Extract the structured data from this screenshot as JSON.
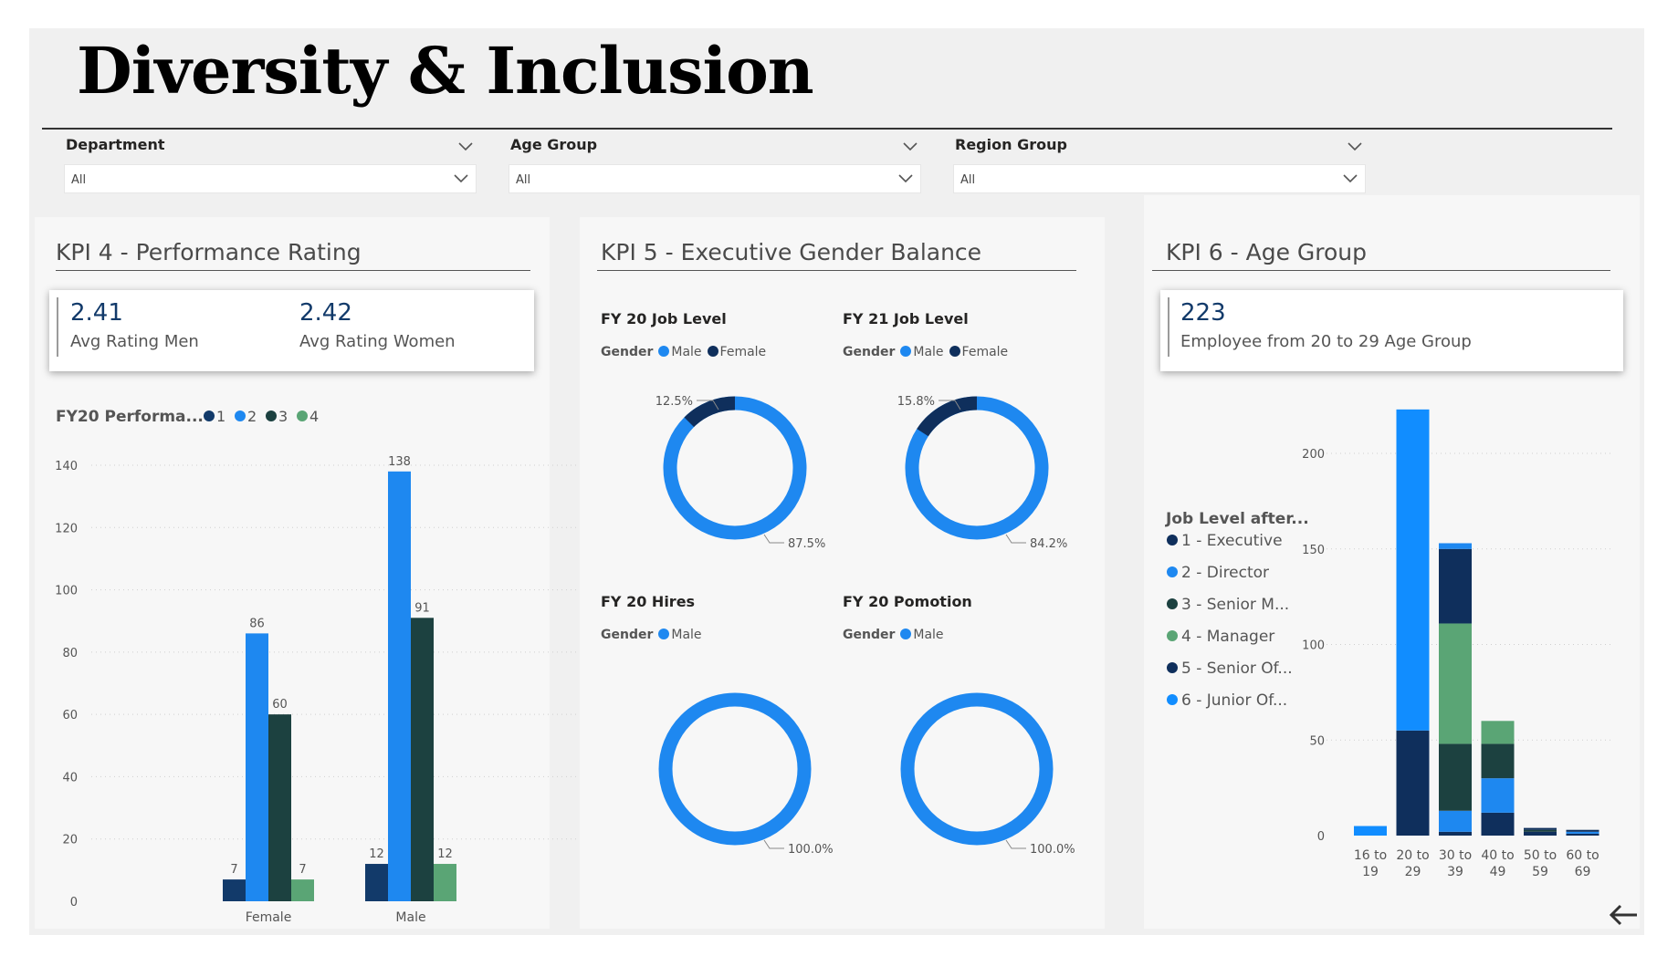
{
  "header": {
    "title": "Diversity & Inclusion"
  },
  "slicers": [
    {
      "label": "Department",
      "value": "All"
    },
    {
      "label": "Age Group",
      "value": "All"
    },
    {
      "label": "Region Group",
      "value": "All"
    }
  ],
  "colors": {
    "dark_blue": "#123a6a",
    "blue": "#1e88f0",
    "dark_green": "#1c4140",
    "green": "#5aa575",
    "navy": "#0f2f5c",
    "light_blue": "#118dff"
  },
  "kpi4": {
    "title": "KPI 4 - Performance Rating",
    "card": {
      "men_value": "2.41",
      "men_label": "Avg Rating Men",
      "women_value": "2.42",
      "women_label": "Avg Rating Women"
    },
    "legend_title": "FY20 Performa...",
    "legend": [
      "1",
      "2",
      "3",
      "4"
    ]
  },
  "kpi5": {
    "title": "KPI 5 - Executive Gender Balance",
    "gender_label": "Gender",
    "male_label": "Male",
    "female_label": "Female",
    "donuts": [
      {
        "title": "FY 20 Job Level",
        "male": "87.5%",
        "female": "12.5%",
        "show_female": true
      },
      {
        "title": "FY 21 Job Level",
        "male": "84.2%",
        "female": "15.8%",
        "show_female": true
      },
      {
        "title": "FY 20 Hires",
        "male": "100.0%",
        "show_female": false
      },
      {
        "title": "FY 20 Pomotion",
        "male": "100.0%",
        "show_female": false
      }
    ]
  },
  "kpi6": {
    "title": "KPI 6 - Age Group",
    "card": {
      "value": "223",
      "label": "Employee from 20 to 29 Age Group"
    },
    "legend_title": "Job Level after...",
    "legend": [
      "1 - Executive",
      "2 - Director",
      "3 - Senior M...",
      "4 - Manager",
      "5 - Senior Of...",
      "6 - Junior Of..."
    ]
  },
  "chart_data": [
    {
      "type": "bar",
      "title": "FY20 Performa...",
      "categories": [
        "Female",
        "Male"
      ],
      "series": [
        {
          "name": "1",
          "values": [
            7,
            12
          ]
        },
        {
          "name": "2",
          "values": [
            86,
            138
          ]
        },
        {
          "name": "3",
          "values": [
            60,
            91
          ]
        },
        {
          "name": "4",
          "values": [
            7,
            12
          ]
        }
      ],
      "y_ticks": [
        "0",
        "20",
        "40",
        "60",
        "80",
        "100",
        "120",
        "140"
      ],
      "ylim": [
        0,
        140
      ],
      "grid": true,
      "legend": "top-left"
    },
    {
      "type": "bar",
      "stacked": true,
      "categories": [
        "16 to 19",
        "20 to 29",
        "30 to 39",
        "40 to 49",
        "50 to 59",
        "60 to 69"
      ],
      "series": [
        {
          "name": "1 - Executive",
          "values": [
            0,
            0,
            0,
            0,
            0,
            0
          ]
        },
        {
          "name": "2 - Director",
          "values": [
            0,
            0,
            0,
            0,
            0,
            0
          ]
        },
        {
          "name": "3 - Senior M...",
          "values": [
            0,
            0,
            0,
            0,
            0,
            0
          ]
        },
        {
          "name": "4 - Manager",
          "values": [
            0,
            0,
            0,
            0,
            0,
            0
          ]
        },
        {
          "name": "5 - Senior Of...",
          "values": [
            0,
            0,
            0,
            0,
            0,
            0
          ]
        },
        {
          "name": "6 - Junior Of...",
          "values": [
            0,
            0,
            0,
            0,
            0,
            0
          ]
        }
      ],
      "stacks": [
        [
          {
            "s": 5,
            "v": 5
          }
        ],
        [
          {
            "s": 0,
            "v": 55
          },
          {
            "s": 5,
            "v": 168
          }
        ],
        [
          {
            "s": 4,
            "v": 2
          },
          {
            "s": 1,
            "v": 11
          },
          {
            "s": 2,
            "v": 35
          },
          {
            "s": 3,
            "v": 63
          },
          {
            "s": 0,
            "v": 39
          },
          {
            "s": 1,
            "v": 3
          }
        ],
        [
          {
            "s": 0,
            "v": 12
          },
          {
            "s": 1,
            "v": 18
          },
          {
            "s": 2,
            "v": 18
          },
          {
            "s": 3,
            "v": 12
          }
        ],
        [
          {
            "s": 4,
            "v": 2
          },
          {
            "s": 2,
            "v": 1
          },
          {
            "s": 0,
            "v": 1
          }
        ],
        [
          {
            "s": 4,
            "v": 1
          },
          {
            "s": 1,
            "v": 1
          },
          {
            "s": 0,
            "v": 1
          }
        ]
      ],
      "y_ticks": [
        "0",
        "50",
        "100",
        "150",
        "200"
      ],
      "ylim": [
        0,
        200
      ],
      "grid": true,
      "legend": "left"
    }
  ]
}
